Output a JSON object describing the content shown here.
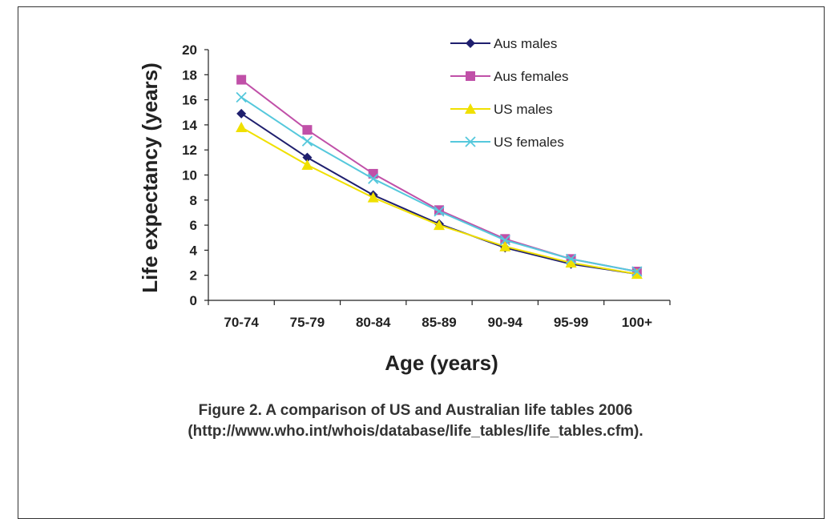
{
  "chart_data": {
    "type": "line",
    "xlabel": "Age (years)",
    "ylabel": "Life expectancy (years)",
    "categories": [
      "70-74",
      "75-79",
      "80-84",
      "85-89",
      "90-94",
      "95-99",
      "100+"
    ],
    "ylim": [
      0,
      20
    ],
    "yticks": [
      0,
      2,
      4,
      6,
      8,
      10,
      12,
      14,
      16,
      18,
      20
    ],
    "grid": false,
    "legend_position": "top-right",
    "series": [
      {
        "name": "Aus males",
        "color": "#1f1f6e",
        "marker": "diamond",
        "values": [
          14.9,
          11.4,
          8.4,
          6.1,
          4.2,
          2.9,
          2.1
        ]
      },
      {
        "name": "Aus females",
        "color": "#c050a8",
        "marker": "square",
        "values": [
          17.6,
          13.6,
          10.1,
          7.2,
          4.9,
          3.3,
          2.3
        ]
      },
      {
        "name": "US males",
        "color": "#f0e000",
        "marker": "triangle",
        "values": [
          13.8,
          10.8,
          8.2,
          6.0,
          4.3,
          3.0,
          2.1
        ]
      },
      {
        "name": "US females",
        "color": "#55c8dc",
        "marker": "x",
        "values": [
          16.2,
          12.7,
          9.7,
          7.1,
          4.8,
          3.3,
          2.3
        ]
      }
    ]
  },
  "caption": {
    "line1": "Figure 2.  A comparison of US and Australian life tables 2006",
    "line2": "(http://www.who.int/whois/database/life_tables/life_tables.cfm)."
  }
}
